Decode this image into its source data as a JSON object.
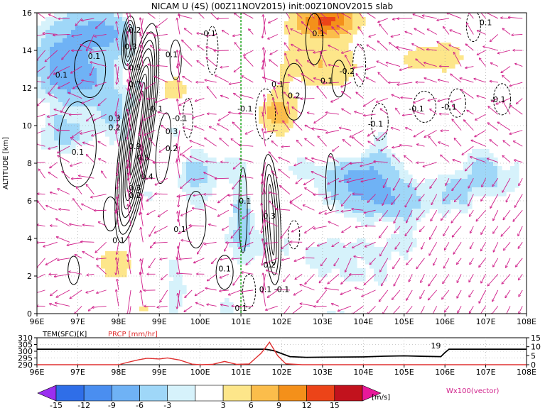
{
  "chart_data": [
    {
      "type": "heatmap",
      "title": "NICAM U (4S) (00Z11NOV2015) init:00Z10NOV2015 slab",
      "xlabel": "",
      "ylabel": "ALTITUDE [km]",
      "x_ticks": [
        "96E",
        "97E",
        "98E",
        "99E",
        "100E",
        "101E",
        "102E",
        "103E",
        "104E",
        "105E",
        "106E",
        "107E",
        "108E"
      ],
      "y_ticks": [
        "0",
        "2",
        "4",
        "6",
        "8",
        "10",
        "12",
        "14",
        "16"
      ],
      "xlim": [
        96,
        108
      ],
      "ylim": [
        0,
        16
      ],
      "marker_longitude": 101,
      "contour_labels": [
        {
          "text": "0.1",
          "x": 97.4,
          "y": 13.7
        },
        {
          "text": "0.1",
          "x": 96.6,
          "y": 12.7
        },
        {
          "text": "0.2",
          "x": 98.4,
          "y": 15.1
        },
        {
          "text": "0.3",
          "x": 98.3,
          "y": 14.2
        },
        {
          "text": "0.5",
          "x": 98.4,
          "y": 13.1
        },
        {
          "text": "0.7",
          "x": 98.4,
          "y": 12.2
        },
        {
          "text": "0.3",
          "x": 97.9,
          "y": 10.4
        },
        {
          "text": "0.2",
          "x": 97.9,
          "y": 9.9
        },
        {
          "text": "0.1",
          "x": 97.0,
          "y": 8.6
        },
        {
          "text": "0.9",
          "x": 98.4,
          "y": 8.9
        },
        {
          "text": "0.5",
          "x": 98.6,
          "y": 8.3
        },
        {
          "text": "0.4",
          "x": 98.7,
          "y": 7.3
        },
        {
          "text": "0.3",
          "x": 98.4,
          "y": 6.7
        },
        {
          "text": "0.2",
          "x": 98.4,
          "y": 6.3
        },
        {
          "text": "0.3",
          "x": 99.3,
          "y": 9.7
        },
        {
          "text": "0.2",
          "x": 99.3,
          "y": 8.8
        },
        {
          "text": "-0.1",
          "x": 99.5,
          "y": 10.4
        },
        {
          "text": "-0.1",
          "x": 98.9,
          "y": 10.9
        },
        {
          "text": "-0.1",
          "x": 100.2,
          "y": 14.9
        },
        {
          "text": "0.1",
          "x": 99.3,
          "y": 13.8
        },
        {
          "text": "0.1",
          "x": 99.5,
          "y": 4.5
        },
        {
          "text": "0.1",
          "x": 98.0,
          "y": 3.9
        },
        {
          "text": "-0.1",
          "x": 101.1,
          "y": 10.9
        },
        {
          "text": "0.1",
          "x": 101.1,
          "y": 6.0
        },
        {
          "text": "0.3",
          "x": 101.7,
          "y": 5.2
        },
        {
          "text": "0.2",
          "x": 101.7,
          "y": 2.6
        },
        {
          "text": "0.1",
          "x": 100.6,
          "y": 2.4
        },
        {
          "text": "0.1",
          "x": 101.6,
          "y": 1.3
        },
        {
          "text": "-0.1",
          "x": 102.0,
          "y": 1.3
        },
        {
          "text": "0.1",
          "x": 101.0,
          "y": 0.3
        },
        {
          "text": "0.1",
          "x": 102.9,
          "y": 14.9
        },
        {
          "text": "0.2",
          "x": 102.3,
          "y": 11.6
        },
        {
          "text": "0.1",
          "x": 103.1,
          "y": 12.4
        },
        {
          "text": "-0.2",
          "x": 103.6,
          "y": 12.9
        },
        {
          "text": "0.1",
          "x": 101.9,
          "y": 12.2
        },
        {
          "text": "-0.1",
          "x": 104.3,
          "y": 10.1
        },
        {
          "text": "-0.1",
          "x": 105.3,
          "y": 10.9
        },
        {
          "text": "-0.1",
          "x": 106.1,
          "y": 11.0
        },
        {
          "text": "-0.1",
          "x": 107.3,
          "y": 11.4
        },
        {
          "text": "0.1",
          "x": 107.0,
          "y": 15.5
        }
      ]
    },
    {
      "type": "line",
      "title": "",
      "series": [
        {
          "name": "TEM(SFC)[K]",
          "color": "#000000",
          "axis": "left",
          "x": [
            96,
            97,
            98,
            99,
            100,
            101,
            101.6,
            101.8,
            102.2,
            102.6,
            103,
            104,
            104.5,
            105,
            105.5,
            105.9,
            106,
            106.1,
            107,
            108
          ],
          "y": [
            301.5,
            301.5,
            301.5,
            301.5,
            301.5,
            301.5,
            301.5,
            300.5,
            296,
            295.5,
            295.6,
            295.8,
            296.3,
            296.6,
            296.2,
            296.0,
            299,
            301.5,
            301.5,
            301.5
          ]
        },
        {
          "name": "PRCP [mm/hr]",
          "color": "#e03030",
          "axis": "right",
          "x": [
            96,
            97,
            98,
            98.2,
            98.5,
            98.7,
            99,
            99.2,
            99.5,
            99.8,
            100,
            100.3,
            100.6,
            100.9,
            101.2,
            101.5,
            101.7,
            101.9,
            102.1,
            102.5,
            103,
            108
          ],
          "y": [
            0,
            0,
            0,
            1.2,
            2.8,
            3.6,
            3.2,
            3.8,
            2.6,
            0.3,
            0,
            0.2,
            1.8,
            0.2,
            0.4,
            6.5,
            12.5,
            5,
            0.5,
            0,
            0,
            0
          ]
        }
      ],
      "y_ticks": [
        "290",
        "295",
        "300",
        "305",
        "310"
      ],
      "y2_ticks": [
        "0",
        "5",
        "10",
        "15"
      ],
      "x_ticks": [
        "96E",
        "97E",
        "98E",
        "99E",
        "100E",
        "101E",
        "102E",
        "103E",
        "104E",
        "105E",
        "106E",
        "107E",
        "108E"
      ],
      "ylim": [
        290,
        310
      ],
      "y2lim": [
        0,
        15
      ],
      "xlim": [
        96,
        108
      ],
      "annotation": "19"
    }
  ],
  "colorbar": {
    "ticks": [
      "-15",
      "-12",
      "-9",
      "-6",
      "-3",
      "3",
      "6",
      "9",
      "12",
      "15"
    ],
    "unit": "[m/s]",
    "colors": [
      "#9a2ff0",
      "#2f6ee8",
      "#4a8ef0",
      "#6fb2f5",
      "#9fd7f8",
      "#d6f2fb",
      "#ffffff",
      "#fde68a",
      "#fbbd4b",
      "#f4901a",
      "#ec4418",
      "#c2121d",
      "#e8199a"
    ],
    "vector_label": "Wx100(vector)"
  }
}
